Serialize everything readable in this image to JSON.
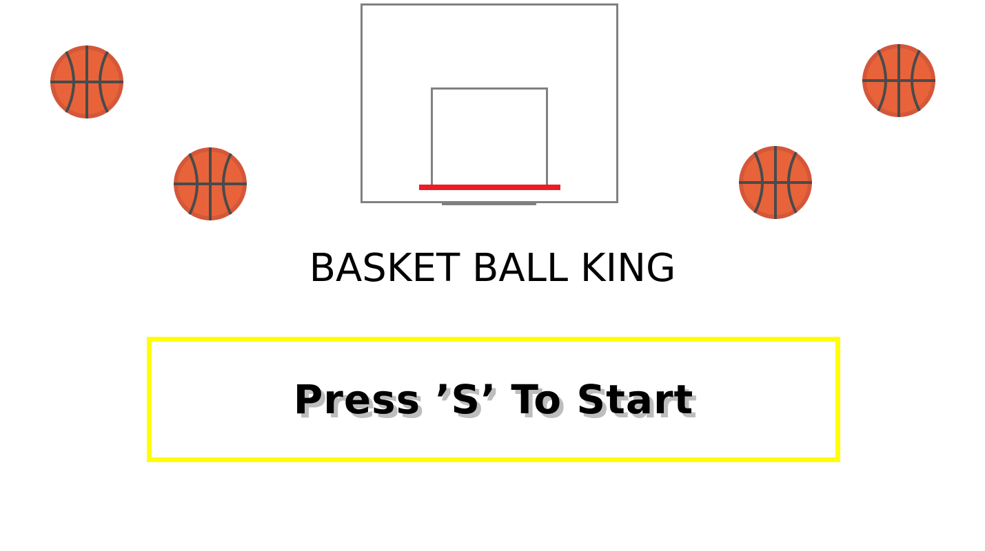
{
  "game": {
    "title": "BASKET BALL KING",
    "start_prompt": "Press ’S’ To Start"
  },
  "colors": {
    "ball_fill": "#e8633a",
    "ball_inner": "#d4573a",
    "ball_lines": "#4a4a4a",
    "backboard": "#808080",
    "rim": "#ed1c24",
    "start_box_border": "#ffff00",
    "start_text_shadow": "#bdbdbd"
  },
  "icons": {
    "ball": "basketball-icon"
  }
}
